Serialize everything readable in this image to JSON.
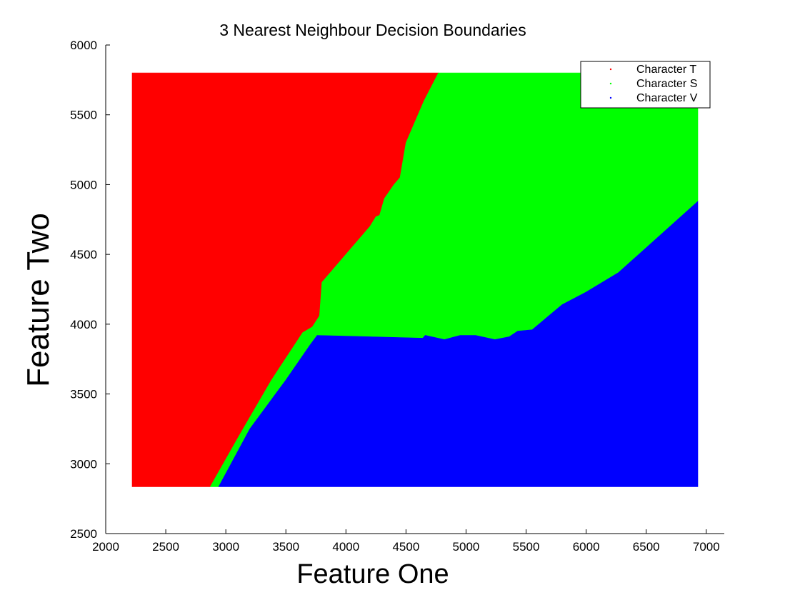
{
  "chart_data": {
    "type": "area",
    "title": "3 Nearest Neighbour Decision Boundaries",
    "xlabel": "Feature One",
    "ylabel": "Feature Two",
    "xlim": [
      2000,
      7150
    ],
    "ylim": [
      2500,
      6000
    ],
    "xticks": [
      2000,
      2500,
      3000,
      3500,
      4000,
      4500,
      5000,
      5500,
      6000,
      6500,
      7000
    ],
    "yticks": [
      2500,
      3000,
      3500,
      4000,
      4500,
      5000,
      5500,
      6000
    ],
    "grid": false,
    "legend_position": "top-right",
    "region_extent": {
      "x": [
        2220,
        6930
      ],
      "y": [
        2835,
        5800
      ]
    },
    "series": [
      {
        "name": "Character T",
        "color": "#ff0000",
        "polygon": [
          [
            2220,
            2835
          ],
          [
            2870,
            2835
          ],
          [
            3110,
            3200
          ],
          [
            3380,
            3600
          ],
          [
            3640,
            3940
          ],
          [
            3720,
            3980
          ],
          [
            3780,
            4060
          ],
          [
            3800,
            4300
          ],
          [
            3900,
            4400
          ],
          [
            4000,
            4500
          ],
          [
            4200,
            4700
          ],
          [
            4250,
            4770
          ],
          [
            4280,
            4780
          ],
          [
            4320,
            4900
          ],
          [
            4400,
            5000
          ],
          [
            4450,
            5050
          ],
          [
            4500,
            5300
          ],
          [
            4550,
            5400
          ],
          [
            4650,
            5600
          ],
          [
            4770,
            5800
          ],
          [
            2220,
            5800
          ]
        ]
      },
      {
        "name": "Character S",
        "color": "#00ff00",
        "polygon": [
          [
            2870,
            2835
          ],
          [
            2940,
            2835
          ],
          [
            3200,
            3250
          ],
          [
            3500,
            3600
          ],
          [
            3700,
            3850
          ],
          [
            3760,
            3920
          ],
          [
            4640,
            3900
          ],
          [
            4660,
            3920
          ],
          [
            4820,
            3890
          ],
          [
            4950,
            3920
          ],
          [
            5080,
            3920
          ],
          [
            5240,
            3890
          ],
          [
            5360,
            3910
          ],
          [
            5430,
            3950
          ],
          [
            5550,
            3960
          ],
          [
            5800,
            4140
          ],
          [
            6000,
            4230
          ],
          [
            6270,
            4370
          ],
          [
            6930,
            4880
          ],
          [
            6930,
            5800
          ],
          [
            4770,
            5800
          ],
          [
            4650,
            5600
          ],
          [
            4550,
            5400
          ],
          [
            4500,
            5300
          ],
          [
            4450,
            5050
          ],
          [
            4400,
            5000
          ],
          [
            4320,
            4900
          ],
          [
            4280,
            4780
          ],
          [
            4250,
            4770
          ],
          [
            4200,
            4700
          ],
          [
            4000,
            4500
          ],
          [
            3900,
            4400
          ],
          [
            3800,
            4300
          ],
          [
            3780,
            4060
          ],
          [
            3720,
            3980
          ],
          [
            3640,
            3940
          ],
          [
            3380,
            3600
          ],
          [
            3110,
            3200
          ]
        ]
      },
      {
        "name": "Character V",
        "color": "#0000ff",
        "polygon": [
          [
            2940,
            2835
          ],
          [
            6930,
            2835
          ],
          [
            6930,
            4880
          ],
          [
            6270,
            4370
          ],
          [
            6000,
            4230
          ],
          [
            5800,
            4140
          ],
          [
            5550,
            3960
          ],
          [
            5430,
            3950
          ],
          [
            5360,
            3910
          ],
          [
            5240,
            3890
          ],
          [
            5080,
            3920
          ],
          [
            4950,
            3920
          ],
          [
            4820,
            3890
          ],
          [
            4660,
            3920
          ],
          [
            4640,
            3900
          ],
          [
            3760,
            3920
          ],
          [
            3700,
            3850
          ],
          [
            3500,
            3600
          ],
          [
            3200,
            3250
          ]
        ]
      }
    ]
  }
}
